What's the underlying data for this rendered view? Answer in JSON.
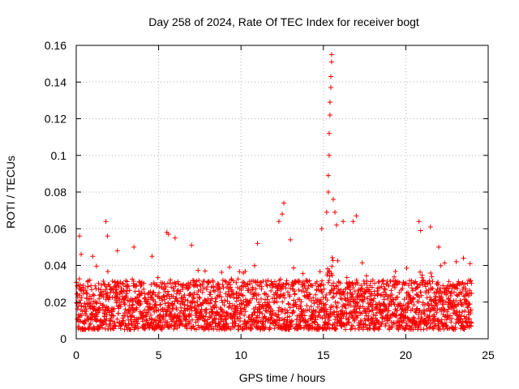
{
  "chart_data": {
    "type": "scatter",
    "title": "Day 258 of 2024, Rate Of TEC Index for receiver bogt",
    "xlabel": "GPS time / hours",
    "ylabel": "ROTI / TECUs",
    "xlim": [
      0,
      25
    ],
    "ylim": [
      0,
      0.16
    ],
    "x_ticks": [
      0,
      5,
      10,
      15,
      20,
      25
    ],
    "x_tick_labels": [
      "0",
      "5",
      "10",
      "15",
      "20",
      "25"
    ],
    "y_ticks": [
      0,
      0.02,
      0.04,
      0.06,
      0.08,
      0.1,
      0.12,
      0.14,
      0.16
    ],
    "y_tick_labels": [
      "0",
      "0.02",
      "0.04",
      "0.06",
      "0.08",
      "0.1",
      "0.12",
      "0.14",
      "0.16"
    ],
    "grid": true,
    "marker": "+",
    "series": [
      {
        "name": "ROTI",
        "color": "#ff0000",
        "points_sample": [
          [
            0.2,
            0.056
          ],
          [
            0.3,
            0.046
          ],
          [
            1.0,
            0.045
          ],
          [
            1.8,
            0.064
          ],
          [
            1.9,
            0.056
          ],
          [
            2.5,
            0.048
          ],
          [
            3.5,
            0.05
          ],
          [
            4.6,
            0.045
          ],
          [
            5.5,
            0.058
          ],
          [
            5.6,
            0.057
          ],
          [
            6.0,
            0.055
          ],
          [
            7.0,
            0.051
          ],
          [
            11.0,
            0.052
          ],
          [
            12.3,
            0.064
          ],
          [
            12.5,
            0.068
          ],
          [
            12.6,
            0.074
          ],
          [
            13.0,
            0.054
          ],
          [
            14.9,
            0.06
          ],
          [
            15.2,
            0.069
          ],
          [
            15.3,
            0.08
          ],
          [
            15.3,
            0.089
          ],
          [
            15.35,
            0.1
          ],
          [
            15.35,
            0.112
          ],
          [
            15.4,
            0.122
          ],
          [
            15.4,
            0.129
          ],
          [
            15.45,
            0.137
          ],
          [
            15.45,
            0.143
          ],
          [
            15.5,
            0.151
          ],
          [
            15.5,
            0.155
          ],
          [
            15.6,
            0.076
          ],
          [
            15.7,
            0.069
          ],
          [
            15.8,
            0.062
          ],
          [
            16.2,
            0.064
          ],
          [
            16.8,
            0.064
          ],
          [
            17.0,
            0.067
          ],
          [
            20.8,
            0.064
          ],
          [
            20.9,
            0.059
          ],
          [
            21.5,
            0.061
          ],
          [
            22.0,
            0.05
          ],
          [
            23.5,
            0.044
          ],
          [
            23.9,
            0.041
          ]
        ]
      }
    ],
    "baseline_profile": {
      "description": "dense ROTI scatter between 0.003 and ~0.035 TECU across 0-24 h",
      "typical_low": 0.005,
      "typical_high": 0.032
    }
  }
}
